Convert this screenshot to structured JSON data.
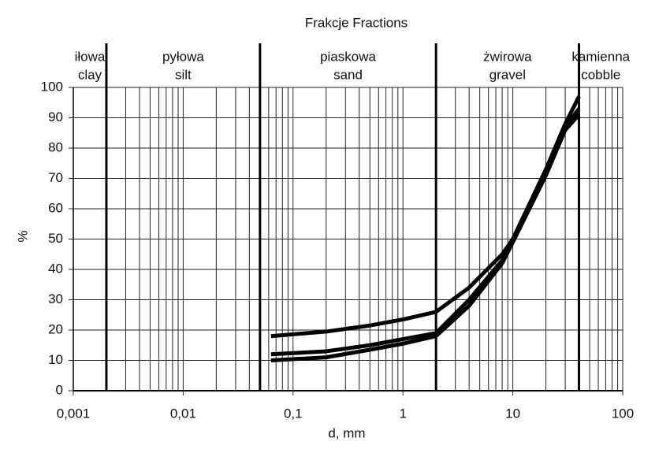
{
  "chart_data": {
    "type": "line",
    "title": "Frakcje   Fractions",
    "xlabel": "d, mm",
    "ylabel": "%",
    "xscale": "log",
    "xlim": [
      0.001,
      100
    ],
    "ylim": [
      0,
      100
    ],
    "xticks": [
      {
        "value": 0.001,
        "label": "0,001"
      },
      {
        "value": 0.01,
        "label": "0,01"
      },
      {
        "value": 0.1,
        "label": "0,1"
      },
      1,
      10,
      100
    ],
    "yticks": [
      0,
      10,
      20,
      30,
      40,
      50,
      60,
      70,
      80,
      90,
      100
    ],
    "grid": true,
    "fraction_bounds": [
      0.002,
      0.05,
      2,
      40
    ],
    "fractions": [
      {
        "label": "iłowa",
        "label_en": "clay"
      },
      {
        "label": "pyłowa",
        "label_en": "silt"
      },
      {
        "label": "piaskowa",
        "label_en": "sand"
      },
      {
        "label": "żwirowa",
        "label_en": "gravel"
      },
      {
        "label": "kamienna",
        "label_en": "cobble"
      }
    ],
    "series": [
      {
        "color": "#000000",
        "x": [
          0.063,
          0.2,
          0.5,
          1,
          2,
          4,
          8,
          10,
          20,
          30,
          40
        ],
        "values": [
          18,
          19.5,
          21.5,
          23.5,
          26,
          34,
          45,
          50,
          73,
          88,
          97
        ]
      },
      {
        "color": "#000000",
        "x": [
          0.063,
          0.2,
          0.5,
          1,
          2,
          4,
          8,
          10,
          20,
          30,
          40
        ],
        "values": [
          12,
          13,
          15,
          17,
          19,
          30,
          43,
          50,
          72,
          87,
          93
        ]
      },
      {
        "color": "#000000",
        "x": [
          0.063,
          0.2,
          0.5,
          1,
          2,
          4,
          8,
          10,
          20,
          30,
          40
        ],
        "values": [
          10,
          11,
          13.5,
          15.5,
          18,
          28,
          42,
          49,
          71,
          86,
          91
        ]
      }
    ]
  }
}
